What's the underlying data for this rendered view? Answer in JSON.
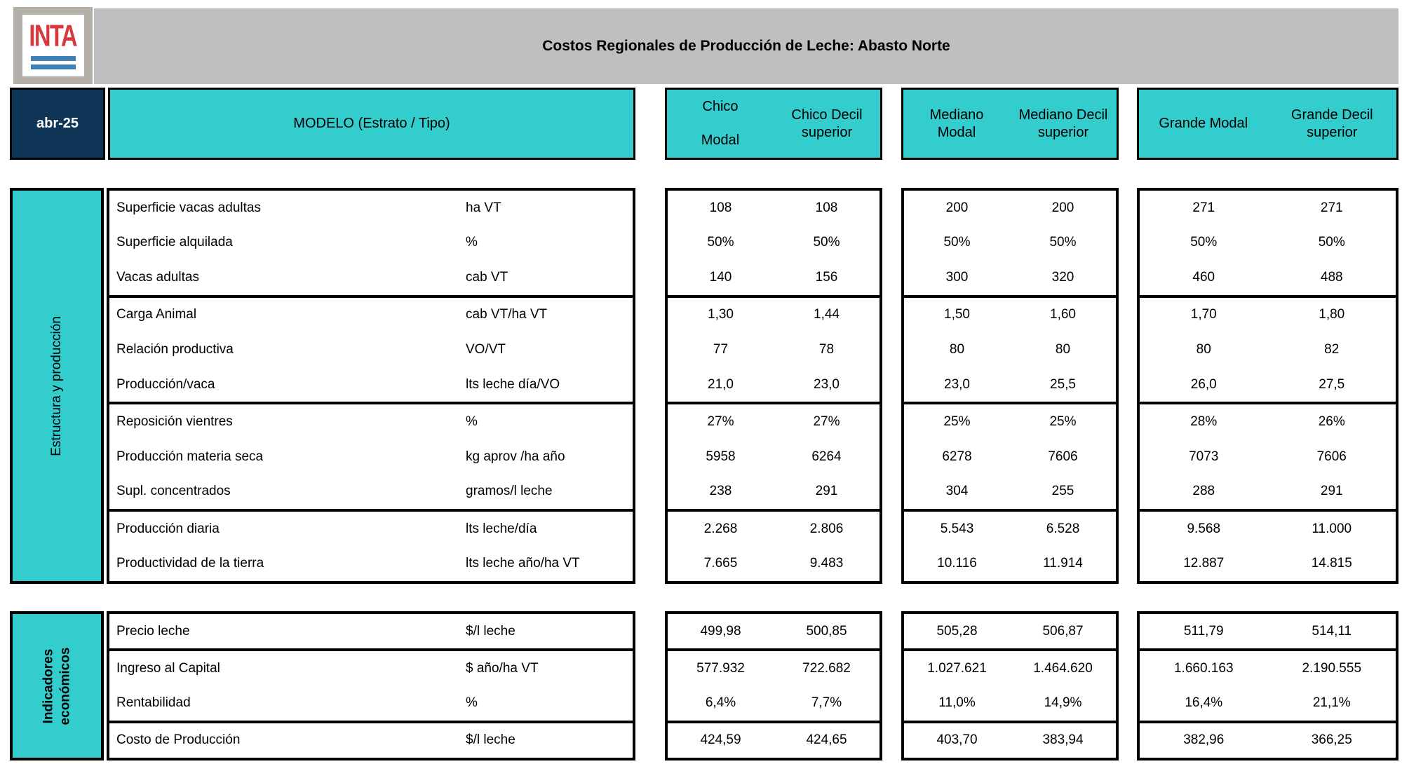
{
  "logo": {
    "text": "INTA"
  },
  "title_bar": {
    "title": "Costos Regionales de Producción de Leche: Abasto Norte"
  },
  "header_row": {
    "date": "abr-25",
    "model": "MODELO (Estrato / Tipo)",
    "groups": [
      {
        "modal_lines": [
          "Chico",
          "Modal"
        ],
        "modal_layout": "spread",
        "decil": "Chico Decil superior"
      },
      {
        "modal_lines": [
          "Mediano",
          "Modal"
        ],
        "modal_layout": "stack",
        "decil": "Mediano Decil superior"
      },
      {
        "modal_lines": [
          "Grande Modal"
        ],
        "modal_layout": "single",
        "decil": "Grande Decil superior"
      }
    ]
  },
  "colors": {
    "teal": "#33CDCE",
    "navy": "#0E3456",
    "title_gray": "#BFBFBF",
    "logo_red": "#D8393F",
    "logo_blue": "#3E80B8"
  },
  "sections": [
    {
      "sidebar_lines": [
        "Estructura y producción"
      ],
      "sidebar_bold": false,
      "groups": [
        {
          "rows": [
            {
              "label": "Superficie vacas adultas",
              "unit": "ha VT",
              "values": [
                "108",
                "108",
                "200",
                "200",
                "271",
                "271"
              ]
            },
            {
              "label": "Superficie alquilada",
              "unit": "%",
              "values": [
                "50%",
                "50%",
                "50%",
                "50%",
                "50%",
                "50%"
              ]
            },
            {
              "label": "Vacas adultas",
              "unit": "cab VT",
              "values": [
                "140",
                "156",
                "300",
                "320",
                "460",
                "488"
              ]
            }
          ]
        },
        {
          "rows": [
            {
              "label": "Carga Animal",
              "unit": "cab VT/ha VT",
              "values": [
                "1,30",
                "1,44",
                "1,50",
                "1,60",
                "1,70",
                "1,80"
              ]
            },
            {
              "label": "Relación productiva",
              "unit": "VO/VT",
              "values": [
                "77",
                "78",
                "80",
                "80",
                "80",
                "82"
              ]
            },
            {
              "label": "Producción/vaca",
              "unit": "lts leche día/VO",
              "values": [
                "21,0",
                "23,0",
                "23,0",
                "25,5",
                "26,0",
                "27,5"
              ]
            }
          ]
        },
        {
          "rows": [
            {
              "label": "Reposición vientres",
              "unit": "%",
              "values": [
                "27%",
                "27%",
                "25%",
                "25%",
                "28%",
                "26%"
              ]
            },
            {
              "label": "Producción materia seca",
              "unit": "kg aprov /ha año",
              "values": [
                "5958",
                "6264",
                "6278",
                "7606",
                "7073",
                "7606"
              ]
            },
            {
              "label": "Supl. concentrados",
              "unit": "gramos/l leche",
              "values": [
                "238",
                "291",
                "304",
                "255",
                "288",
                "291"
              ]
            }
          ]
        },
        {
          "rows": [
            {
              "label": "Producción diaria",
              "unit": "lts leche/día",
              "values": [
                "2.268",
                "2.806",
                "5.543",
                "6.528",
                "9.568",
                "11.000"
              ]
            },
            {
              "label": "Productividad de la tierra",
              "unit": "lts leche año/ha VT",
              "values": [
                "7.665",
                "9.483",
                "10.116",
                "11.914",
                "12.887",
                "14.815"
              ]
            }
          ]
        }
      ]
    },
    {
      "sidebar_lines": [
        "Indicadores",
        "económicos"
      ],
      "sidebar_bold": true,
      "groups": [
        {
          "rows": [
            {
              "label": "Precio leche",
              "unit": "$/l leche",
              "values": [
                "499,98",
                "500,85",
                "505,28",
                "506,87",
                "511,79",
                "514,11"
              ]
            }
          ]
        },
        {
          "rows": [
            {
              "label": "Ingreso al Capital",
              "unit": "$ año/ha VT",
              "values": [
                "577.932",
                "722.682",
                "1.027.621",
                "1.464.620",
                "1.660.163",
                "2.190.555"
              ]
            },
            {
              "label": "Rentabilidad",
              "unit": "%",
              "values": [
                "6,4%",
                "7,7%",
                "11,0%",
                "14,9%",
                "16,4%",
                "21,1%"
              ]
            }
          ]
        },
        {
          "rows": [
            {
              "label": "Costo de Producción",
              "unit": "$/l leche",
              "values": [
                "424,59",
                "424,65",
                "403,70",
                "383,94",
                "382,96",
                "366,25"
              ]
            }
          ]
        }
      ]
    }
  ]
}
